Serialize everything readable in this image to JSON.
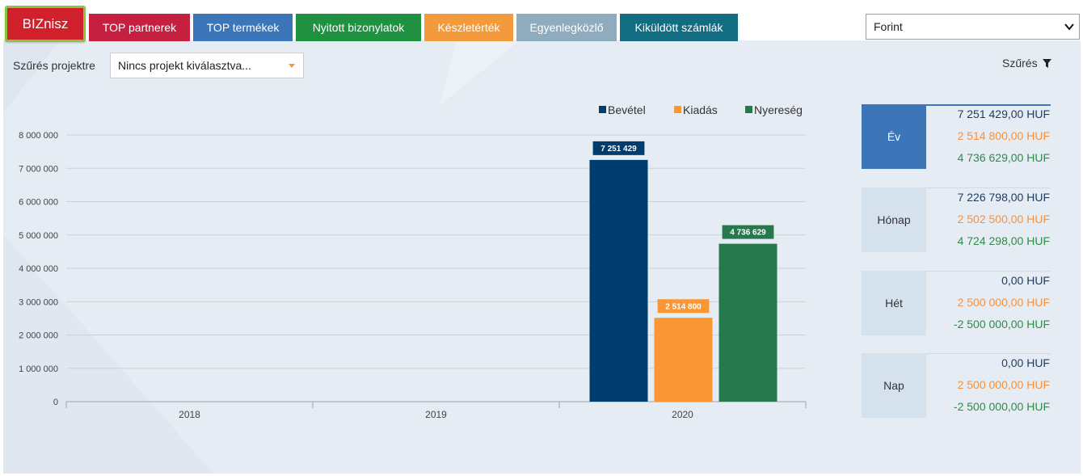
{
  "nav": {
    "brand": "BIZnisz",
    "tabs": [
      {
        "label": "TOP partnerek",
        "color": "#c5203f"
      },
      {
        "label": "TOP termékek",
        "color": "#3d75b9"
      },
      {
        "label": "Nyitott bizonylatok",
        "color": "#1f9140"
      },
      {
        "label": "Készletérték",
        "color": "#f39a3c"
      },
      {
        "label": "Egyenlegközlő",
        "color": "#8eacbd"
      },
      {
        "label": "Kiküldött számlák",
        "color": "#136d82"
      }
    ]
  },
  "currency": {
    "selected": "Forint"
  },
  "filter": {
    "label": "Szűrés projektre",
    "project_placeholder": "Nincs projekt kiválasztva...",
    "szures_label": "Szűrés"
  },
  "chart_data": {
    "type": "bar",
    "categories": [
      "2018",
      "2019",
      "2020"
    ],
    "series": [
      {
        "name": "Bevétel",
        "color": "#003d6f",
        "values": [
          0,
          0,
          7251429
        ]
      },
      {
        "name": "Kiadás",
        "color": "#fb9634",
        "values": [
          0,
          0,
          2514800
        ]
      },
      {
        "name": "Nyereség",
        "color": "#26794c",
        "values": [
          0,
          0,
          4736629
        ]
      }
    ],
    "ylim": [
      0,
      8000000
    ],
    "yticks": [
      0,
      1000000,
      2000000,
      3000000,
      4000000,
      5000000,
      6000000,
      7000000,
      8000000
    ],
    "ytick_labels": [
      "0",
      "1 000 000",
      "2 000 000",
      "3 000 000",
      "4 000 000",
      "5 000 000",
      "6 000 000",
      "7 000 000",
      "8 000 000"
    ],
    "data_labels": [
      "7 251 429",
      "2 514 800",
      "4 736 629"
    ],
    "grid": true,
    "legend": "top-right"
  },
  "summary": [
    {
      "label": "Év",
      "values": [
        "7 251 429,00 HUF",
        "2 514 800,00 HUF",
        "4 736 629,00 HUF"
      ],
      "active": true
    },
    {
      "label": "Hónap",
      "values": [
        "7 226 798,00 HUF",
        "2 502 500,00 HUF",
        "4 724 298,00 HUF"
      ],
      "active": false
    },
    {
      "label": "Hét",
      "values": [
        "0,00 HUF",
        "2 500 000,00 HUF",
        "-2 500 000,00 HUF"
      ],
      "active": false
    },
    {
      "label": "Nap",
      "values": [
        "0,00 HUF",
        "2 500 000,00 HUF",
        "-2 500 000,00 HUF"
      ],
      "active": false
    }
  ]
}
